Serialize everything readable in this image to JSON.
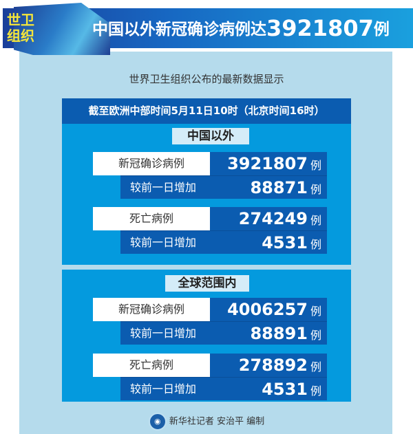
{
  "header": {
    "badge_line1": "世卫",
    "badge_line2": "组织",
    "title_text": "中国以外新冠确诊病例达",
    "title_number": "3921807",
    "title_unit": "例"
  },
  "subtitle": "世界卫生组织公布的最新数据显示",
  "date_bar": "截至欧洲中部时间5月11日10时（北京时间16时）",
  "sections": [
    {
      "label": "中国以外",
      "rows": [
        {
          "label": "新冠确诊病例",
          "value": "3921807",
          "unit": "例",
          "increase_label": "较前一日增加",
          "increase": "88871",
          "increase_unit": "例"
        },
        {
          "label": "死亡病例",
          "value": "274249",
          "unit": "例",
          "increase_label": "较前一日增加",
          "increase": "4531",
          "increase_unit": "例"
        }
      ]
    },
    {
      "label": "全球范围内",
      "rows": [
        {
          "label": "新冠确诊病例",
          "value": "4006257",
          "unit": "例",
          "increase_label": "较前一日增加",
          "increase": "88891",
          "increase_unit": "例"
        },
        {
          "label": "死亡病例",
          "value": "278892",
          "unit": "例",
          "increase_label": "较前一日增加",
          "increase": "4531",
          "increase_unit": "例"
        }
      ]
    }
  ],
  "footer": {
    "credit": "新华社记者 安治平 编制",
    "logo_icon": "xinhua-logo-icon"
  }
}
